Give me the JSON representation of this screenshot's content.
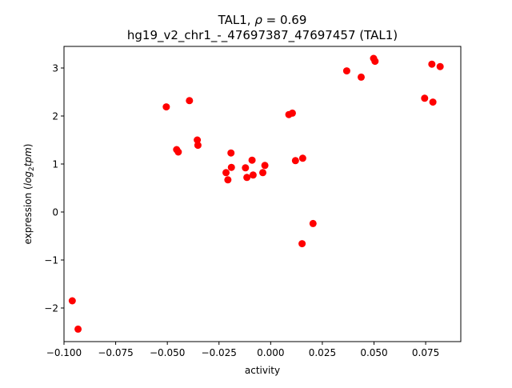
{
  "chart_data": {
    "type": "scatter",
    "title_line1_prefix": "TAL1, ",
    "title_line1_rho": "ρ",
    "title_line1_suffix": " = 0.69",
    "title_line2": "hg19_v2_chr1_-_47697387_47697457 (TAL1)",
    "xlabel": "activity",
    "ylabel_prefix": "expression (",
    "ylabel_math": "log",
    "ylabel_sub": "2",
    "ylabel_math2": "tpm",
    "ylabel_suffix": ")",
    "xlim": [
      -0.1,
      0.092
    ],
    "ylim": [
      -2.7,
      3.45
    ],
    "x_ticks": [
      {
        "value": -0.1,
        "label": "−0.100"
      },
      {
        "value": -0.075,
        "label": "−0.075"
      },
      {
        "value": -0.05,
        "label": "−0.050"
      },
      {
        "value": -0.025,
        "label": "−0.025"
      },
      {
        "value": 0.0,
        "label": "0.000"
      },
      {
        "value": 0.025,
        "label": "0.025"
      },
      {
        "value": 0.05,
        "label": "0.050"
      },
      {
        "value": 0.075,
        "label": "0.075"
      }
    ],
    "y_ticks": [
      {
        "value": -2,
        "label": "−2"
      },
      {
        "value": -1,
        "label": "−1"
      },
      {
        "value": 0,
        "label": "0"
      },
      {
        "value": 1,
        "label": "1"
      },
      {
        "value": 2,
        "label": "2"
      },
      {
        "value": 3,
        "label": "3"
      }
    ],
    "marker_color": "#ff0000",
    "grid": false,
    "points": [
      {
        "x": -0.096,
        "y": -1.85
      },
      {
        "x": -0.0932,
        "y": -2.44
      },
      {
        "x": -0.0505,
        "y": 2.19
      },
      {
        "x": -0.0393,
        "y": 2.32
      },
      {
        "x": -0.0455,
        "y": 1.3
      },
      {
        "x": -0.0447,
        "y": 1.25
      },
      {
        "x": -0.0355,
        "y": 1.5
      },
      {
        "x": -0.0352,
        "y": 1.39
      },
      {
        "x": -0.0216,
        "y": 0.82
      },
      {
        "x": -0.0207,
        "y": 0.67
      },
      {
        "x": -0.0192,
        "y": 1.23
      },
      {
        "x": -0.019,
        "y": 0.93
      },
      {
        "x": -0.0122,
        "y": 0.92
      },
      {
        "x": -0.0115,
        "y": 0.72
      },
      {
        "x": -0.009,
        "y": 1.08
      },
      {
        "x": -0.0085,
        "y": 0.77
      },
      {
        "x": -0.0038,
        "y": 0.82
      },
      {
        "x": -0.0028,
        "y": 0.97
      },
      {
        "x": 0.0088,
        "y": 2.03
      },
      {
        "x": 0.0105,
        "y": 2.06
      },
      {
        "x": 0.012,
        "y": 1.07
      },
      {
        "x": 0.0155,
        "y": 1.12
      },
      {
        "x": 0.0152,
        "y": -0.66
      },
      {
        "x": 0.0205,
        "y": -0.24
      },
      {
        "x": 0.0368,
        "y": 2.94
      },
      {
        "x": 0.0438,
        "y": 2.81
      },
      {
        "x": 0.0498,
        "y": 3.2
      },
      {
        "x": 0.0505,
        "y": 3.14
      },
      {
        "x": 0.0745,
        "y": 2.37
      },
      {
        "x": 0.078,
        "y": 3.08
      },
      {
        "x": 0.0785,
        "y": 2.29
      },
      {
        "x": 0.082,
        "y": 3.03
      }
    ]
  }
}
